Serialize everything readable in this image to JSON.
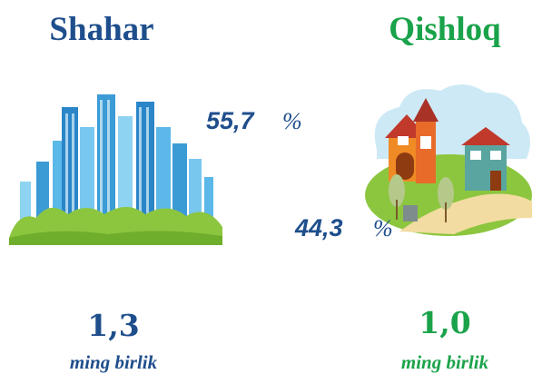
{
  "urban": {
    "title": "Shahar",
    "share": "55,7",
    "share_unit": "%",
    "count": "1,3",
    "count_unit": "ming birlik"
  },
  "rural": {
    "title": "Qishloq",
    "share": "44,3",
    "share_unit": "%",
    "count": "1,0",
    "count_unit": "ming birlik"
  }
}
